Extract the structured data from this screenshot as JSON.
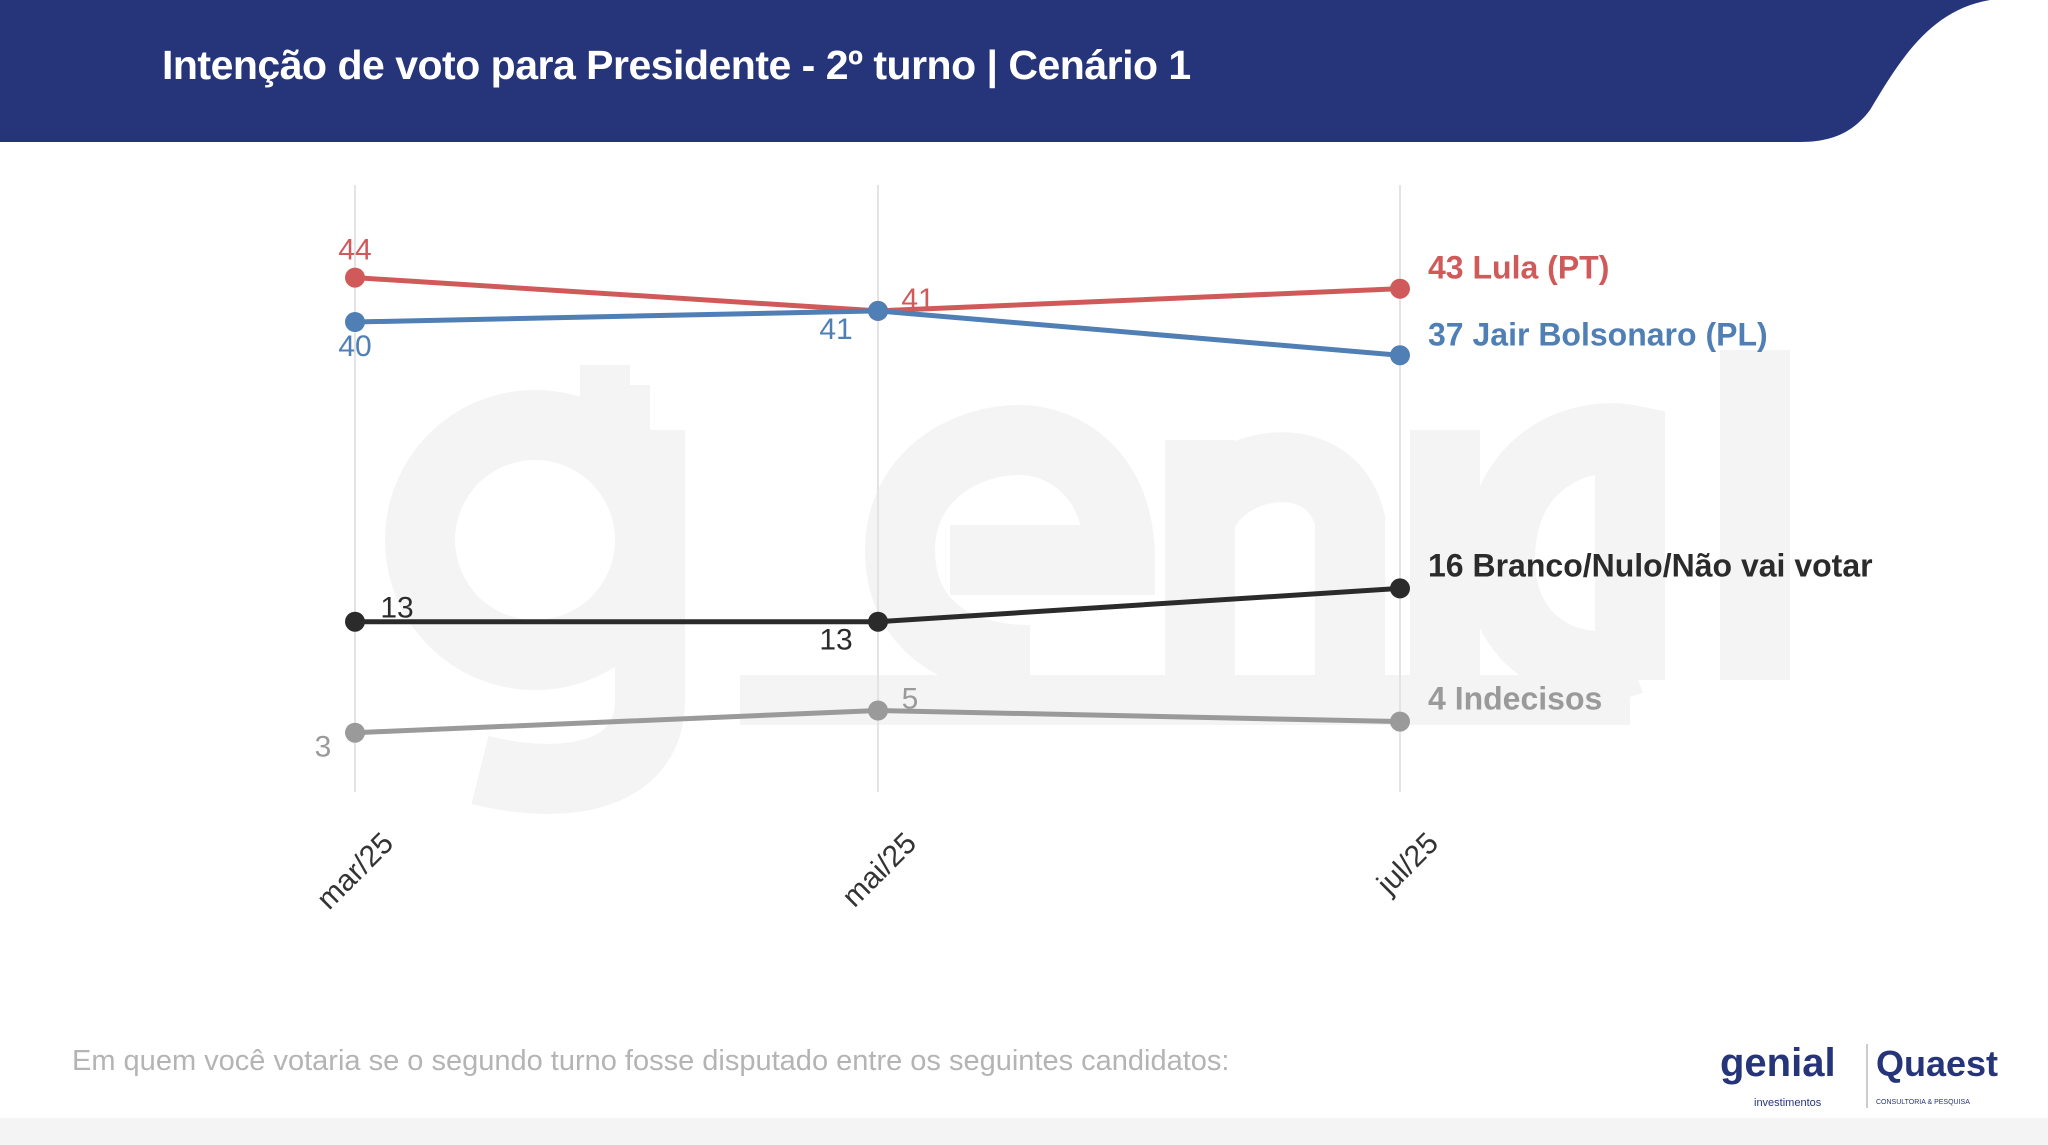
{
  "header": {
    "title": "Intenção de voto para Presidente - 2º turno | Cenário 1"
  },
  "footer": {
    "question": "Em quem você votaria se o segundo turno fosse disputado entre os seguintes candidatos:"
  },
  "logos": {
    "genial": "genial",
    "genial_sub": "investimentos",
    "quaest": "Quaest",
    "quaest_sub": "CONSULTORIA & PESQUISA"
  },
  "watermark": {
    "line1": "genial",
    "line2": "investimentos"
  },
  "colors": {
    "header": "#263479",
    "lula": "#d05a5a",
    "bolsonaro": "#4f7fb5",
    "branco": "#2b2b2b",
    "indecisos": "#9a9a9a"
  },
  "chart_data": {
    "type": "line",
    "title": "Intenção de voto para Presidente - 2º turno | Cenário 1",
    "categories": [
      "mar/25",
      "mai/25",
      "jul/25"
    ],
    "grid": "vertical",
    "series": [
      {
        "name": "Lula (PT)",
        "values": [
          44,
          41,
          43
        ],
        "color": "#d05a5a",
        "end_label": "43 Lula (PT)"
      },
      {
        "name": "Jair Bolsonaro (PL)",
        "values": [
          40,
          41,
          37
        ],
        "color": "#4f7fb5",
        "end_label": "37 Jair Bolsonaro (PL)"
      },
      {
        "name": "Branco/Nulo/Não vai votar",
        "values": [
          13,
          13,
          16
        ],
        "color": "#2b2b2b",
        "end_label": "16 Branco/Nulo/Não vai votar"
      },
      {
        "name": "Indecisos",
        "values": [
          3,
          5,
          4
        ],
        "color": "#9a9a9a",
        "end_label": "4 Indecisos"
      }
    ]
  }
}
